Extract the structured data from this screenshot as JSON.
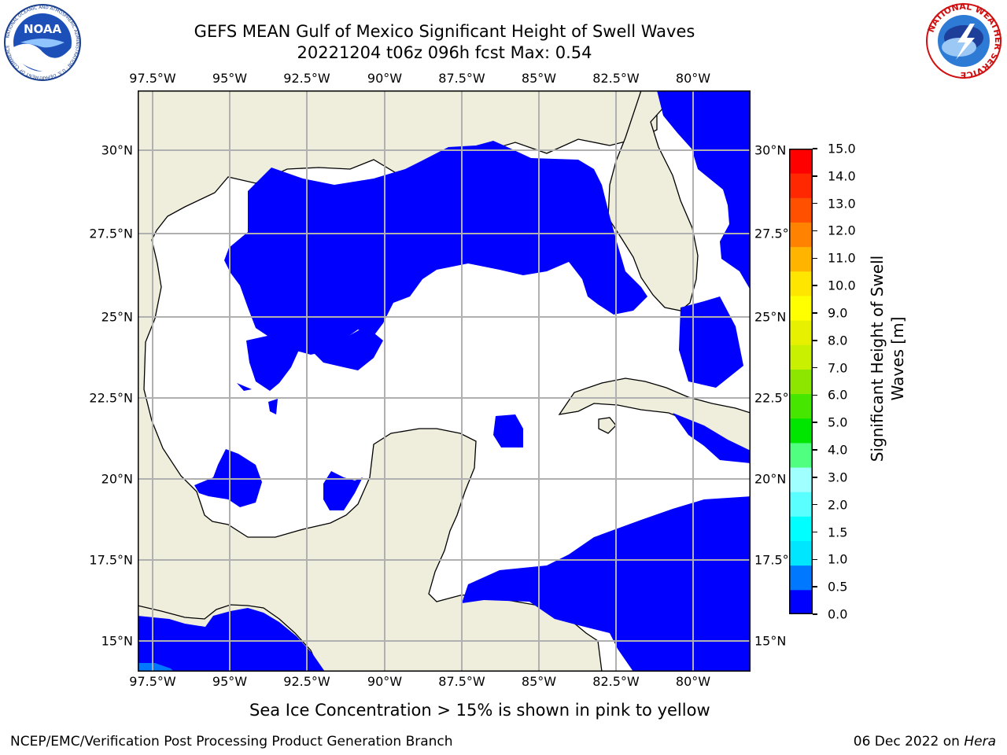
{
  "header": {
    "title_line1": "GEFS MEAN Gulf of Mexico Significant Height of Swell Waves",
    "title_line2": "20221204 t06z 096h fcst   Max: 0.54"
  },
  "logos": {
    "left": {
      "name": "noaa-logo",
      "text": "NOAA",
      "ring_text": "NATIONAL OCEANIC AND ATMOSPHERIC ADMINISTRATION · U.S. DEPARTMENT OF COMMERCE"
    },
    "right": {
      "name": "nws-logo",
      "ring_text": "NATIONAL WEATHER SERVICE"
    }
  },
  "map": {
    "lon_ticks_top": [
      "97.5°W",
      "95°W",
      "92.5°W",
      "90°W",
      "87.5°W",
      "85°W",
      "82.5°W",
      "80°W"
    ],
    "lon_ticks_bottom": [
      "97.5°W",
      "95°W",
      "92.5°W",
      "90°W",
      "87.5°W",
      "85°W",
      "82.5°W",
      "80°W"
    ],
    "lat_ticks_left": [
      "30°N",
      "27.5°N",
      "25°N",
      "22.5°N",
      "20°N",
      "17.5°N",
      "15°N"
    ],
    "lat_ticks_right": [
      "30°N",
      "27.5°N",
      "25°N",
      "22.5°N",
      "20°N",
      "17.5°N",
      "15°N"
    ],
    "lon_range": [
      -98,
      -78.2
    ],
    "lat_range": [
      14,
      31.8
    ],
    "land_color": "#efeedc",
    "swell_color": "#0000ff",
    "grid": true
  },
  "colorbar": {
    "label_line1": "Significant Height of Swell",
    "label_line2": "Waves [m]",
    "ticks": [
      "0.0",
      "0.5",
      "1.0",
      "1.5",
      "2.0",
      "3.0",
      "4.0",
      "5.0",
      "6.0",
      "7.0",
      "8.0",
      "9.0",
      "10.0",
      "11.0",
      "12.0",
      "13.0",
      "14.0",
      "15.0"
    ],
    "colors": [
      "#0000ff",
      "#0078ff",
      "#00e6ff",
      "#00ffff",
      "#5affff",
      "#a0ffff",
      "#50ff80",
      "#00e600",
      "#46e600",
      "#8ce600",
      "#c8f000",
      "#e6f000",
      "#ffff00",
      "#ffe600",
      "#ffb400",
      "#ff8200",
      "#ff5000",
      "#ff2800",
      "#ff0000"
    ]
  },
  "note": "Sea Ice Concentration > 15% is shown in pink to yellow",
  "footer": {
    "left": "NCEP/EMC/Verification Post Processing Product Generation Branch",
    "date": "06 Dec 2022 on",
    "machine": "Hera"
  }
}
